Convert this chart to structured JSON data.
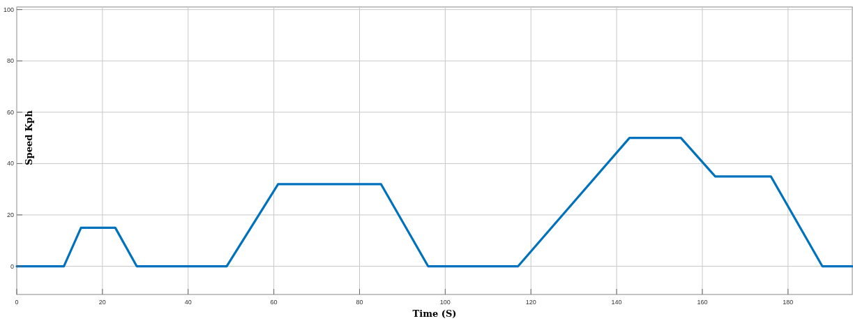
{
  "chart_data": {
    "type": "line",
    "xlabel": "Time (S)",
    "ylabel": "Speed Kph",
    "x": [
      0,
      11,
      15,
      23,
      28,
      49,
      61,
      85,
      96,
      117,
      143,
      155,
      163,
      176,
      188,
      195
    ],
    "series": [
      {
        "color": "#0072bd",
        "values": [
          0,
          0,
          15,
          15,
          0,
          0,
          32,
          32,
          0,
          0,
          50,
          50,
          35,
          35,
          0,
          0
        ]
      }
    ],
    "xlim": [
      0,
      195
    ],
    "xticks": [
      0,
      20,
      40,
      60,
      80,
      100,
      120,
      140,
      160,
      180
    ],
    "ylim": [
      -11,
      101
    ],
    "yticks": [
      0,
      20,
      40,
      60,
      80,
      100
    ],
    "grid": true,
    "line_style": "solid",
    "marker": "none"
  }
}
